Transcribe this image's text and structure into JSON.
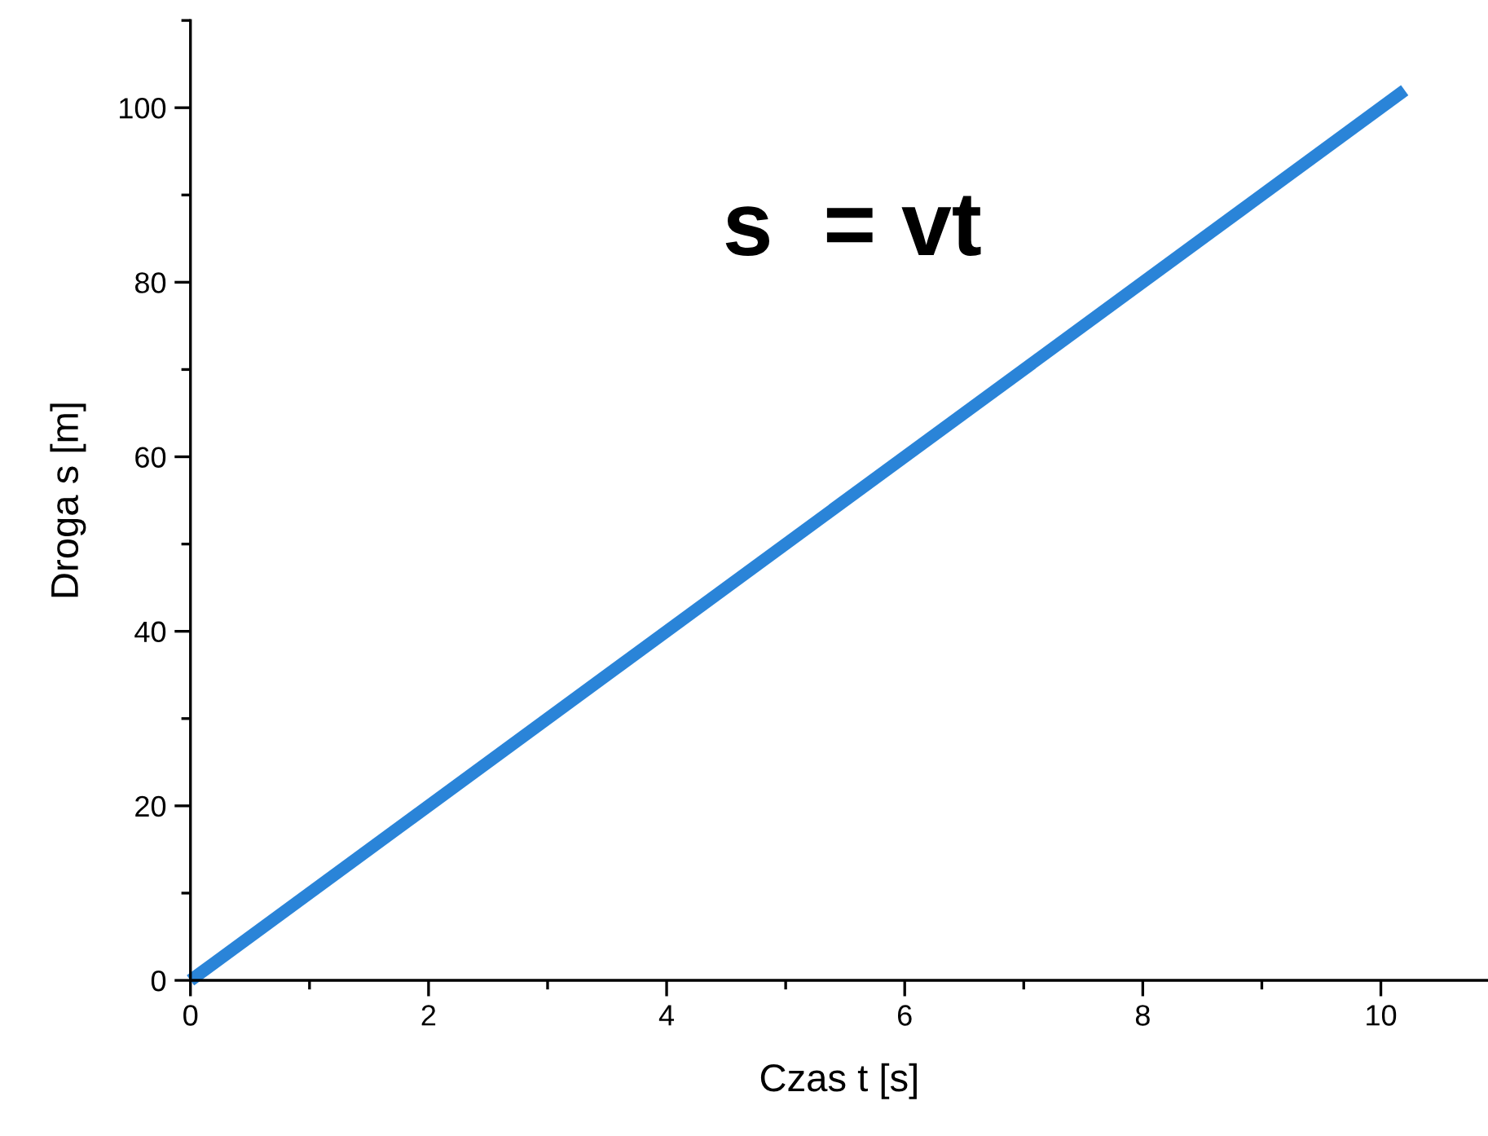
{
  "chart_data": {
    "type": "line",
    "xlabel": "Czas t [s]",
    "ylabel": "Droga s [m]",
    "annotations": [
      "s  = vt"
    ],
    "x": [
      0,
      10.2
    ],
    "series": [
      {
        "color": "#2a84d8",
        "values": [
          0,
          102
        ]
      }
    ],
    "xlim": [
      0,
      10.9
    ],
    "ylim": [
      0,
      110
    ],
    "xticks": [
      0,
      2,
      4,
      6,
      8,
      10
    ],
    "yticks": [
      0,
      20,
      40,
      60,
      80,
      100
    ],
    "grid": false,
    "legend": false,
    "marker": "none",
    "line_style": "solid"
  }
}
